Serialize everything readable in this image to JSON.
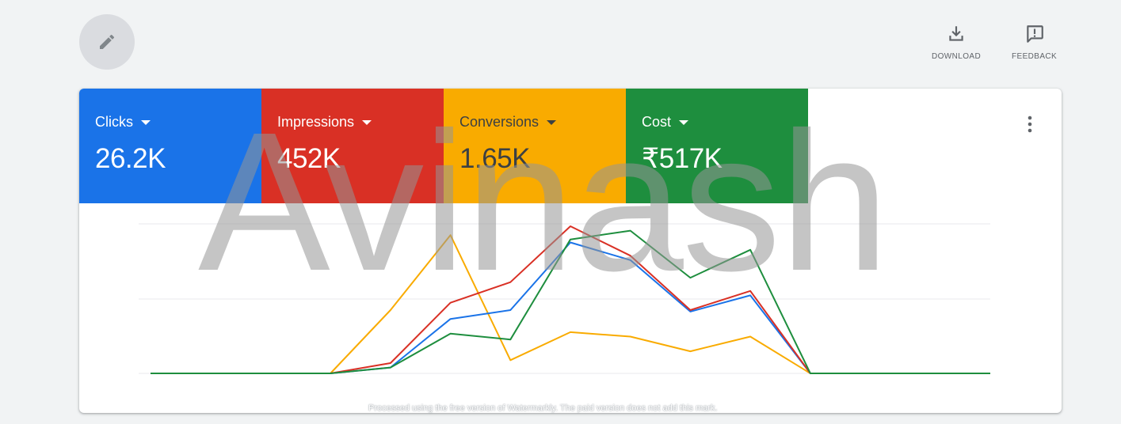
{
  "header": {
    "edit_icon": "pencil-icon",
    "actions": [
      {
        "label": "DOWNLOAD",
        "icon": "download-icon"
      },
      {
        "label": "FEEDBACK",
        "icon": "feedback-icon"
      }
    ]
  },
  "metrics": [
    {
      "label": "Clicks",
      "value": "26.2K",
      "color": "#1a73e8"
    },
    {
      "label": "Impressions",
      "value": "452K",
      "color": "#d93025"
    },
    {
      "label": "Conversions",
      "value": "1.65K",
      "color": "#f9ab00"
    },
    {
      "label": "Cost",
      "value": "₹517K",
      "color": "#1e8e3e"
    }
  ],
  "more_icon": "more-vert-icon",
  "chart_data": {
    "type": "line",
    "x": [
      0,
      1,
      2,
      3,
      4,
      5,
      6,
      7,
      8,
      9,
      10,
      11,
      12,
      13,
      14
    ],
    "ylim": [
      0,
      1
    ],
    "grid": true,
    "legend": "none",
    "series": [
      {
        "color": "#f9ab00",
        "values": [
          0,
          0,
          0,
          0,
          0.43,
          0.94,
          0.09,
          0.28,
          0.25,
          0.15,
          0.25,
          0,
          0,
          0,
          0
        ]
      },
      {
        "color": "#1a73e8",
        "values": [
          0,
          0,
          0,
          0,
          0.04,
          0.37,
          0.43,
          0.89,
          0.77,
          0.42,
          0.53,
          0,
          0,
          0,
          0
        ]
      },
      {
        "color": "#d93025",
        "values": [
          0,
          0,
          0,
          0,
          0.07,
          0.48,
          0.62,
          1.0,
          0.8,
          0.43,
          0.56,
          0,
          0,
          0,
          0
        ]
      },
      {
        "color": "#1e8e3e",
        "values": [
          0,
          0,
          0,
          0,
          0.04,
          0.27,
          0.23,
          0.91,
          0.97,
          0.65,
          0.84,
          0,
          0,
          0,
          0
        ]
      }
    ]
  },
  "watermark": {
    "text": "Avinash",
    "note": "Processed using the free version of Watermarkly. The paid version does not add this mark."
  }
}
